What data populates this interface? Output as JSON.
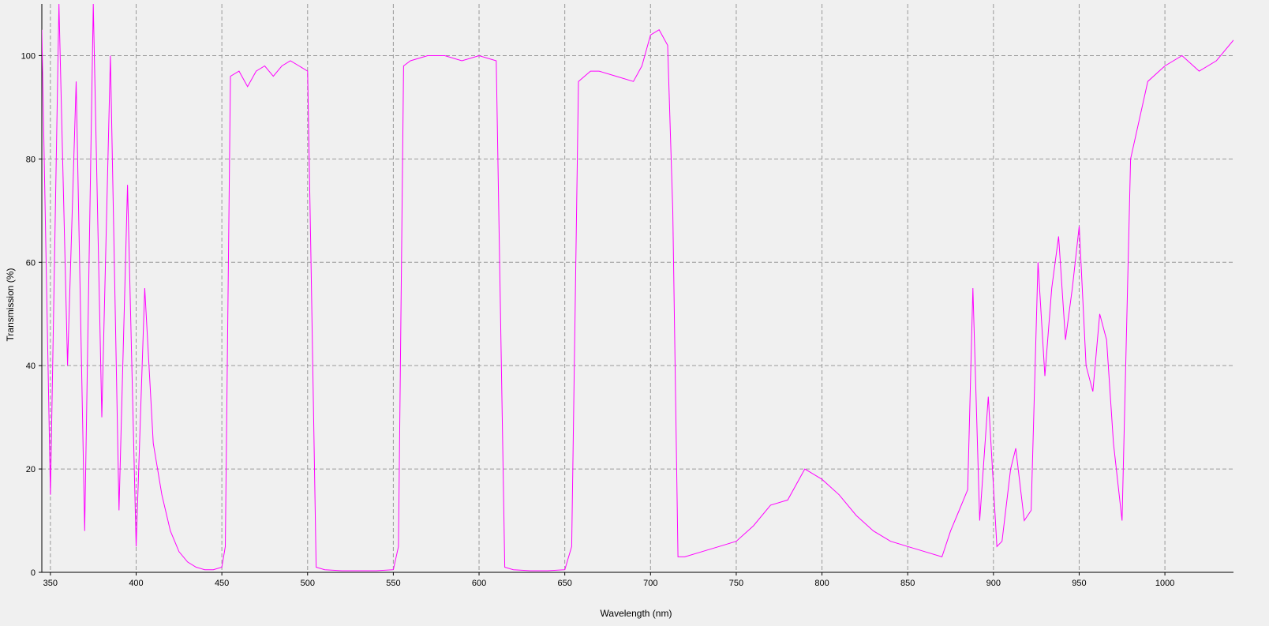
{
  "chart_data": {
    "type": "line",
    "title": "",
    "xlabel": "Wavelength (nm)",
    "ylabel": "Transmission (%)",
    "xlim": [
      345,
      1040
    ],
    "ylim": [
      0,
      110
    ],
    "xticks": [
      350,
      400,
      450,
      500,
      550,
      600,
      650,
      700,
      750,
      800,
      850,
      900,
      950,
      1000
    ],
    "yticks": [
      0,
      20,
      40,
      60,
      80,
      100
    ],
    "grid": true,
    "grid_style": "dashed",
    "legend": "none",
    "series": [
      {
        "color": "#ff00ff",
        "x": [
          345,
          350,
          355,
          360,
          365,
          370,
          375,
          380,
          385,
          390,
          395,
          400,
          405,
          410,
          415,
          420,
          425,
          430,
          435,
          440,
          445,
          450,
          452,
          455,
          460,
          465,
          470,
          475,
          480,
          485,
          490,
          495,
          500,
          502,
          505,
          510,
          520,
          530,
          540,
          550,
          553,
          556,
          560,
          570,
          580,
          590,
          600,
          610,
          612,
          615,
          620,
          630,
          640,
          650,
          654,
          658,
          665,
          670,
          680,
          690,
          695,
          700,
          705,
          710,
          713,
          716,
          720,
          730,
          740,
          750,
          760,
          770,
          780,
          790,
          800,
          810,
          820,
          830,
          840,
          850,
          860,
          870,
          875,
          880,
          885,
          888,
          892,
          897,
          902,
          905,
          910,
          913,
          918,
          922,
          926,
          930,
          934,
          938,
          942,
          946,
          950,
          954,
          958,
          962,
          966,
          970,
          975,
          980,
          990,
          1000,
          1010,
          1020,
          1030,
          1040
        ],
        "y": [
          105,
          15,
          110,
          40,
          95,
          8,
          110,
          30,
          100,
          12,
          75,
          5,
          55,
          25,
          15,
          8,
          4,
          2,
          1,
          0.5,
          0.5,
          1,
          5,
          96,
          97,
          94,
          97,
          98,
          96,
          98,
          99,
          98,
          97,
          60,
          1,
          0.5,
          0.3,
          0.3,
          0.3,
          0.5,
          5,
          98,
          99,
          100,
          100,
          99,
          100,
          99,
          60,
          1,
          0.5,
          0.3,
          0.3,
          0.5,
          5,
          95,
          97,
          97,
          96,
          95,
          98,
          104,
          105,
          102,
          70,
          3,
          3,
          4,
          5,
          6,
          9,
          13,
          14,
          20,
          18,
          15,
          11,
          8,
          6,
          5,
          4,
          3,
          8,
          12,
          16,
          55,
          10,
          34,
          5,
          6,
          20,
          24,
          10,
          12,
          60,
          38,
          55,
          65,
          45,
          55,
          67,
          40,
          35,
          50,
          45,
          25,
          10,
          80,
          95,
          98,
          100,
          97,
          99,
          103
        ]
      }
    ]
  }
}
